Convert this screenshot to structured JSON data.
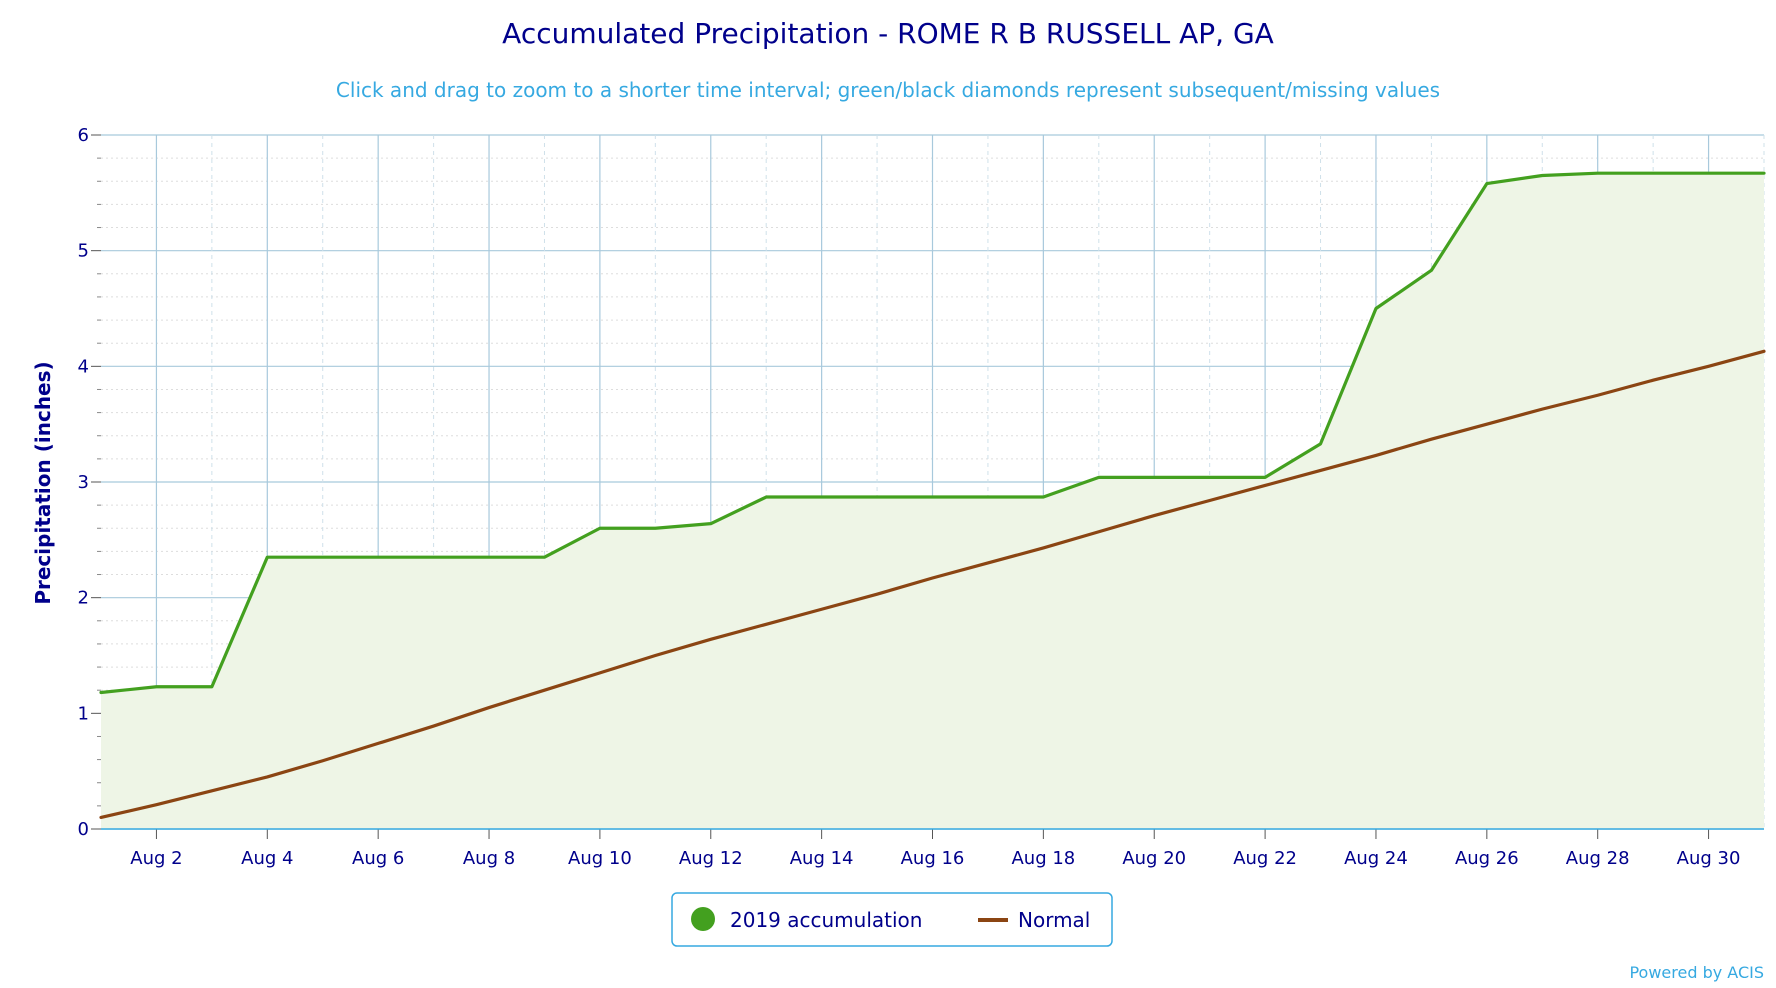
{
  "chart_data": {
    "type": "line",
    "title": "Accumulated Precipitation - ROME R B RUSSELL AP, GA",
    "subtitle": "Click and drag to zoom to a shorter time interval; green/black diamonds represent subsequent/missing values",
    "ylabel": "Precipitation (inches)",
    "xlabel": "",
    "ylim": [
      0,
      6
    ],
    "yticks": [
      0,
      1,
      2,
      3,
      4,
      5,
      6
    ],
    "xlim": [
      1,
      31
    ],
    "x_ticks": [
      {
        "day": 2,
        "label": "Aug 2"
      },
      {
        "day": 4,
        "label": "Aug 4"
      },
      {
        "day": 6,
        "label": "Aug 6"
      },
      {
        "day": 8,
        "label": "Aug 8"
      },
      {
        "day": 10,
        "label": "Aug 10"
      },
      {
        "day": 12,
        "label": "Aug 12"
      },
      {
        "day": 14,
        "label": "Aug 14"
      },
      {
        "day": 16,
        "label": "Aug 16"
      },
      {
        "day": 18,
        "label": "Aug 18"
      },
      {
        "day": 20,
        "label": "Aug 20"
      },
      {
        "day": 22,
        "label": "Aug 22"
      },
      {
        "day": 24,
        "label": "Aug 24"
      },
      {
        "day": 26,
        "label": "Aug 26"
      },
      {
        "day": 28,
        "label": "Aug 28"
      },
      {
        "day": 30,
        "label": "Aug 30"
      }
    ],
    "grid": true,
    "legend_position": "bottom-center",
    "series": [
      {
        "name": "2019 accumulation",
        "color": "#43a01f",
        "fill": "#eef5e6",
        "x": [
          1,
          2,
          3,
          4,
          5,
          6,
          7,
          8,
          9,
          10,
          11,
          12,
          13,
          14,
          15,
          16,
          17,
          18,
          19,
          20,
          21,
          22,
          23,
          24,
          25,
          26,
          27,
          28,
          29,
          30,
          31
        ],
        "values": [
          1.18,
          1.23,
          1.23,
          2.35,
          2.35,
          2.35,
          2.35,
          2.35,
          2.35,
          2.6,
          2.6,
          2.64,
          2.87,
          2.87,
          2.87,
          2.87,
          2.87,
          2.87,
          3.04,
          3.04,
          3.04,
          3.04,
          3.33,
          4.5,
          4.83,
          5.58,
          5.65,
          5.67,
          5.67,
          5.67,
          5.67
        ]
      },
      {
        "name": "Normal",
        "color": "#8b4513",
        "x": [
          1,
          2,
          3,
          4,
          5,
          6,
          7,
          8,
          9,
          10,
          11,
          12,
          13,
          14,
          15,
          16,
          17,
          18,
          19,
          20,
          21,
          22,
          23,
          24,
          25,
          26,
          27,
          28,
          29,
          30,
          31
        ],
        "values": [
          0.1,
          0.21,
          0.33,
          0.45,
          0.59,
          0.74,
          0.89,
          1.05,
          1.2,
          1.35,
          1.5,
          1.64,
          1.77,
          1.9,
          2.03,
          2.17,
          2.3,
          2.43,
          2.57,
          2.71,
          2.84,
          2.97,
          3.1,
          3.23,
          3.37,
          3.5,
          3.63,
          3.75,
          3.88,
          4.0,
          4.13
        ]
      }
    ],
    "credit": "Powered by ACIS"
  }
}
